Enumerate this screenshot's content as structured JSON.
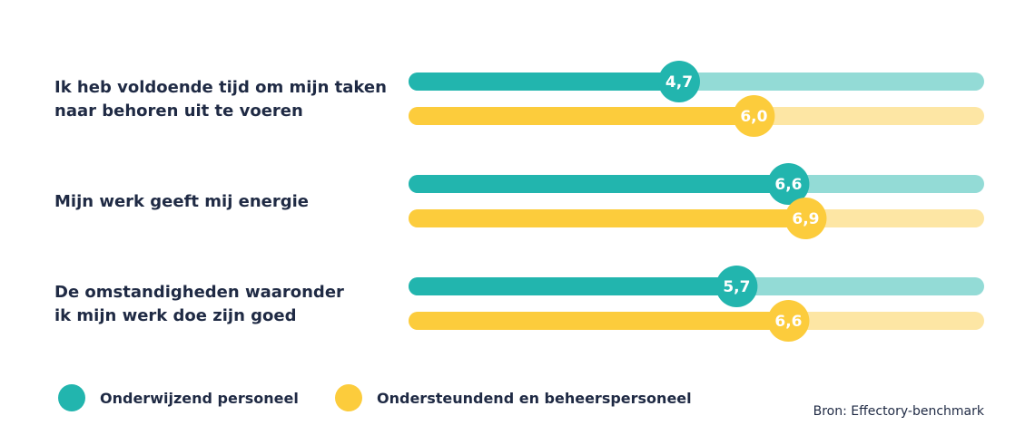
{
  "chart_data": {
    "type": "bar",
    "orientation": "horizontal",
    "xlim": [
      0,
      10
    ],
    "categories": [
      [
        "Ik heb voldoende tijd om mijn taken",
        "naar behoren uit te voeren"
      ],
      [
        "Mijn werk geeft mij energie"
      ],
      [
        "De omstandigheden waaronder",
        "ik mijn werk doe zijn goed"
      ]
    ],
    "series": [
      {
        "name": "Onderwijzend personeel",
        "color": "#22b5ae",
        "track_color": "#93dbd6",
        "values": [
          4.7,
          6.6,
          5.7
        ],
        "labels": [
          "4,7",
          "6,6",
          "5,7"
        ]
      },
      {
        "name": "Ondersteundend en beheerspersoneel",
        "color": "#fccc3c",
        "track_color": "#fde6a4",
        "values": [
          6.0,
          6.9,
          6.6
        ],
        "labels": [
          "6,0",
          "6,9",
          "6,6"
        ]
      }
    ],
    "legend_position": "bottom-left",
    "source": "Bron: Effectory-benchmark"
  }
}
